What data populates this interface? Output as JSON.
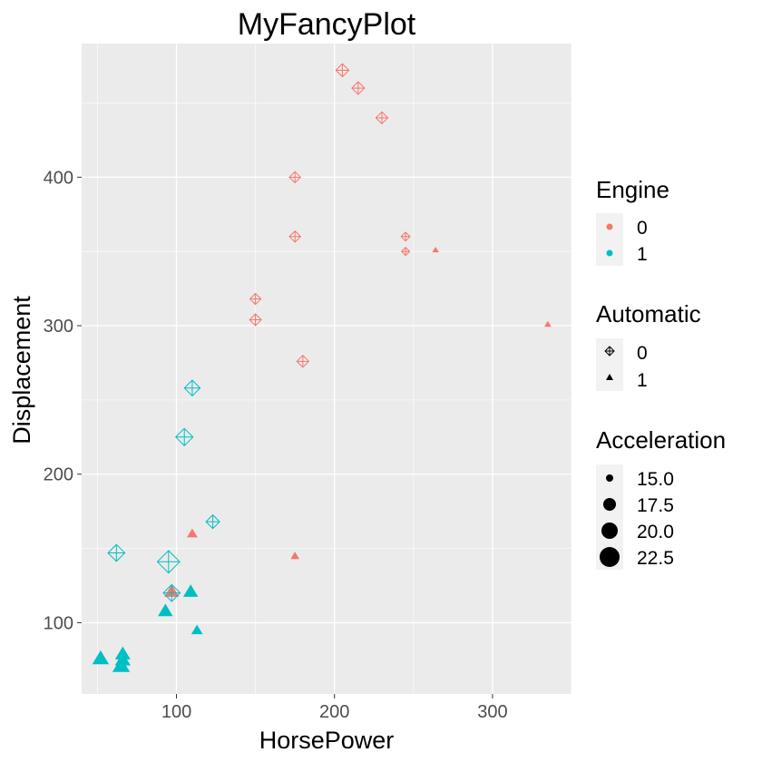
{
  "chart_data": {
    "type": "scatter",
    "title": "MyFancyPlot",
    "xlabel": "HorsePower",
    "ylabel": "Displacement",
    "xlim": [
      40,
      350
    ],
    "ylim": [
      52,
      490
    ],
    "xticks": [
      100,
      200,
      300
    ],
    "yticks": [
      100,
      200,
      300,
      400
    ],
    "grid": true,
    "legend_position": "right",
    "colors": {
      "0": "#F8766D",
      "1": "#00BFC4"
    },
    "legends": {
      "color": {
        "title": "Engine",
        "entries": [
          "0",
          "1"
        ]
      },
      "shape": {
        "title": "Automatic",
        "entries": [
          "0",
          "1"
        ],
        "shapes": [
          "diamond-plus",
          "triangle"
        ]
      },
      "size": {
        "title": "Acceleration",
        "entries": [
          "15.0",
          "17.5",
          "20.0",
          "22.5"
        ]
      }
    },
    "points": [
      {
        "x": 205,
        "y": 472,
        "engine": "0",
        "automatic": "0",
        "acceleration": 18.0
      },
      {
        "x": 215,
        "y": 460,
        "engine": "0",
        "automatic": "0",
        "acceleration": 17.8
      },
      {
        "x": 230,
        "y": 440,
        "engine": "0",
        "automatic": "0",
        "acceleration": 17.4
      },
      {
        "x": 175,
        "y": 400,
        "engine": "0",
        "automatic": "0",
        "acceleration": 17.0
      },
      {
        "x": 175,
        "y": 360,
        "engine": "0",
        "automatic": "0",
        "acceleration": 17.0
      },
      {
        "x": 245,
        "y": 360,
        "engine": "0",
        "automatic": "0",
        "acceleration": 15.8
      },
      {
        "x": 245,
        "y": 350,
        "engine": "0",
        "automatic": "0",
        "acceleration": 15.4
      },
      {
        "x": 264,
        "y": 351,
        "engine": "0",
        "automatic": "1",
        "acceleration": 14.5
      },
      {
        "x": 150,
        "y": 318,
        "engine": "0",
        "automatic": "0",
        "acceleration": 16.9
      },
      {
        "x": 150,
        "y": 304,
        "engine": "0",
        "automatic": "0",
        "acceleration": 17.3
      },
      {
        "x": 335,
        "y": 301,
        "engine": "0",
        "automatic": "1",
        "acceleration": 14.6
      },
      {
        "x": 180,
        "y": 276,
        "engine": "0",
        "automatic": "0",
        "acceleration": 17.4
      },
      {
        "x": 110,
        "y": 258,
        "engine": "1",
        "automatic": "0",
        "acceleration": 19.4
      },
      {
        "x": 105,
        "y": 225,
        "engine": "1",
        "automatic": "0",
        "acceleration": 20.2
      },
      {
        "x": 123,
        "y": 168,
        "engine": "1",
        "automatic": "0",
        "acceleration": 18.3
      },
      {
        "x": 110,
        "y": 160,
        "engine": "0",
        "automatic": "1",
        "acceleration": 16.5
      },
      {
        "x": 62,
        "y": 147,
        "engine": "1",
        "automatic": "0",
        "acceleration": 20.0
      },
      {
        "x": 175,
        "y": 145,
        "engine": "0",
        "automatic": "1",
        "acceleration": 15.5
      },
      {
        "x": 95,
        "y": 141,
        "engine": "1",
        "automatic": "0",
        "acceleration": 22.9
      },
      {
        "x": 97,
        "y": 121,
        "engine": "0",
        "automatic": "1",
        "acceleration": 18.6
      },
      {
        "x": 109,
        "y": 121,
        "engine": "1",
        "automatic": "1",
        "acceleration": 18.6
      },
      {
        "x": 93,
        "y": 108,
        "engine": "1",
        "automatic": "1",
        "acceleration": 18.6
      },
      {
        "x": 97,
        "y": 120,
        "engine": "1",
        "automatic": "0",
        "acceleration": 20.0
      },
      {
        "x": 113,
        "y": 95,
        "engine": "1",
        "automatic": "1",
        "acceleration": 16.9
      },
      {
        "x": 66,
        "y": 79,
        "engine": "1",
        "automatic": "1",
        "acceleration": 18.9
      },
      {
        "x": 52,
        "y": 76,
        "engine": "1",
        "automatic": "1",
        "acceleration": 19.5
      },
      {
        "x": 65,
        "y": 71,
        "engine": "1",
        "automatic": "1",
        "acceleration": 19.9
      },
      {
        "x": 66,
        "y": 75,
        "engine": "1",
        "automatic": "1",
        "acceleration": 19.0
      }
    ]
  }
}
